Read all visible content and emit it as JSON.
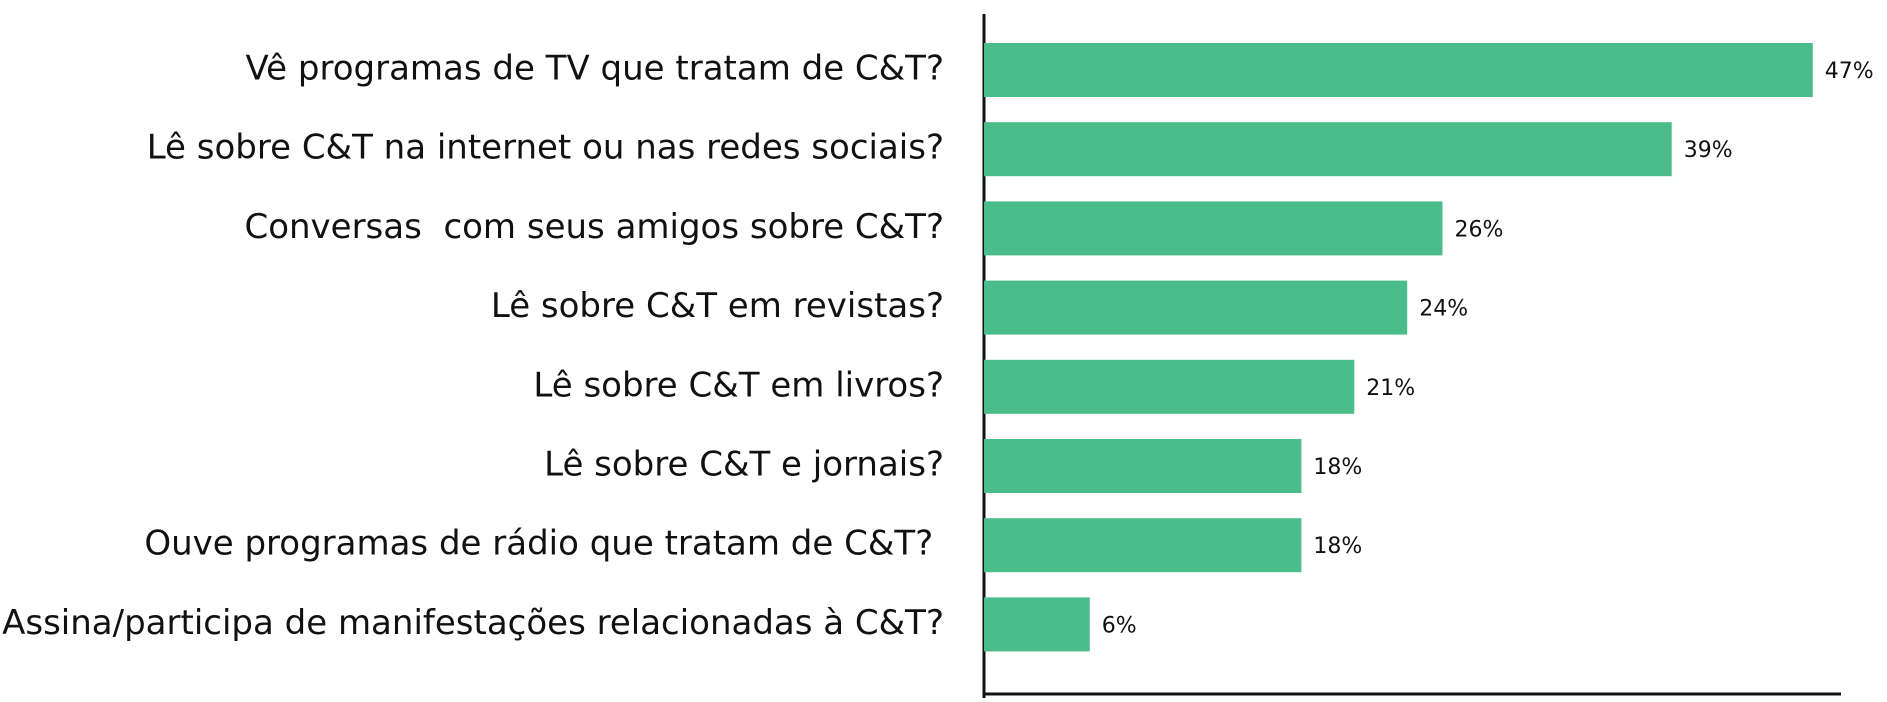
{
  "chart_data": {
    "type": "hbar",
    "categories": [
      "Vê programas de TV que tratam de C&T?",
      "Lê sobre C&T na internet ou nas redes sociais?",
      "Conversas  com seus amigos sobre C&T?",
      "Lê sobre C&T em revistas?",
      "Lê sobre C&T em livros?",
      "Lê sobre C&T e jornais?",
      "Ouve programas de rádio que tratam de C&T? ",
      "Assina/participa de manifestações relacionadas à C&T?"
    ],
    "values": [
      47,
      39,
      26,
      24,
      21,
      18,
      18,
      6
    ],
    "value_labels": [
      "47%",
      "39%",
      "26%",
      "24%",
      "21%",
      "18%",
      "18%",
      "6%"
    ],
    "color": "#4bbd8a",
    "xlim": [
      0,
      48.6
    ]
  }
}
